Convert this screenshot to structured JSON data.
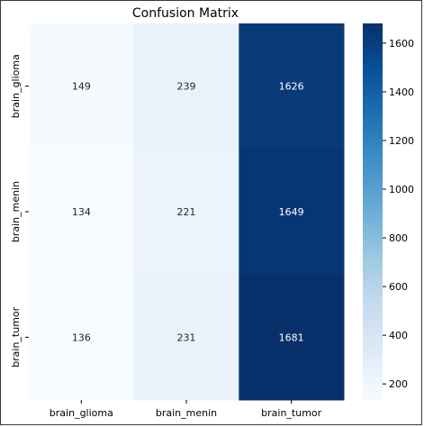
{
  "chart_data": {
    "type": "heatmap",
    "title": "Confusion Matrix",
    "x_categories": [
      "brain_glioma",
      "brain_menin",
      "brain_tumor"
    ],
    "y_categories": [
      "brain_glioma",
      "brain_menin",
      "brain_tumor"
    ],
    "values": [
      [
        149,
        239,
        1626
      ],
      [
        134,
        221,
        1649
      ],
      [
        136,
        231,
        1681
      ]
    ],
    "colormap": "Blues",
    "colorbar": {
      "range": [
        134,
        1681
      ],
      "ticks": [
        200,
        400,
        600,
        800,
        1000,
        1200,
        1400,
        1600
      ]
    },
    "colors": {
      "low": "#f7fbff",
      "high": "#08306b",
      "text_dark": "#262626",
      "text_light": "#ffffff"
    }
  }
}
